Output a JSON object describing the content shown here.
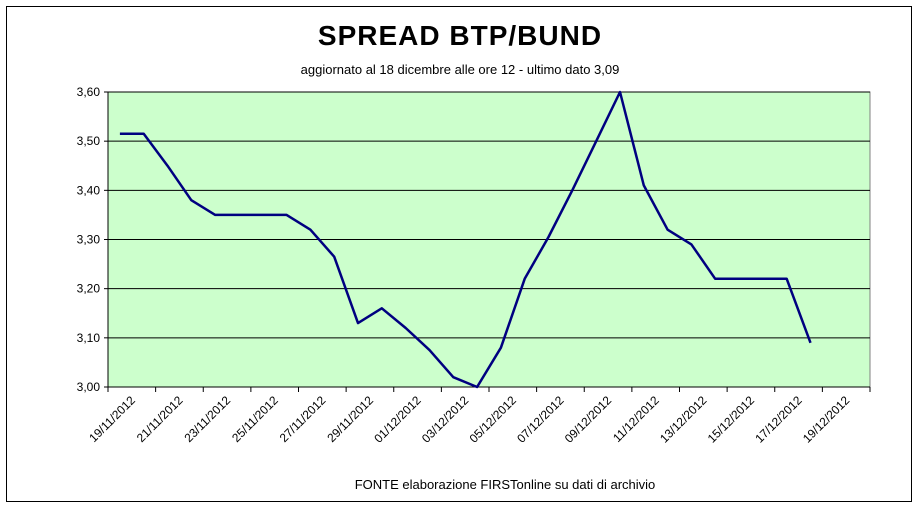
{
  "title": "SPREAD  BTP/BUND",
  "subtitle": "aggiornato al 18  dicembre alle ore 12 - ultimo dato 3,09",
  "source": "FONTE elaborazione FIRSTonline su dati di archivio",
  "colors": {
    "plot_bg": "#ccffcc",
    "line": "#000080",
    "grid": "#000000"
  },
  "chart_data": {
    "type": "line",
    "title": "SPREAD  BTP/BUND",
    "subtitle": "aggiornato al 18  dicembre alle ore 12 - ultimo dato 3,09",
    "xlabel": "",
    "ylabel": "",
    "ylim": [
      3.0,
      3.6
    ],
    "y_ticks": [
      3.0,
      3.1,
      3.2,
      3.3,
      3.4,
      3.5,
      3.6
    ],
    "y_tick_labels": [
      "3,00",
      "3,10",
      "3,20",
      "3,30",
      "3,40",
      "3,50",
      "3,60"
    ],
    "x_tick_labels": [
      "19/11/2012",
      "21/11/2012",
      "23/11/2012",
      "25/11/2012",
      "27/11/2012",
      "29/11/2012",
      "01/12/2012",
      "03/12/2012",
      "05/12/2012",
      "07/12/2012",
      "09/12/2012",
      "11/12/2012",
      "13/12/2012",
      "15/12/2012",
      "17/12/2012",
      "19/12/2012"
    ],
    "grid": true,
    "legend": "none",
    "series": [
      {
        "x": [
          "2012-11-19",
          "2012-11-20",
          "2012-11-21",
          "2012-11-22",
          "2012-11-23",
          "2012-11-24",
          "2012-11-25",
          "2012-11-26",
          "2012-11-27",
          "2012-11-28",
          "2012-11-29",
          "2012-11-30",
          "2012-12-01",
          "2012-12-02",
          "2012-12-03",
          "2012-12-04",
          "2012-12-05",
          "2012-12-06",
          "2012-12-07",
          "2012-12-08",
          "2012-12-09",
          "2012-12-10",
          "2012-12-11",
          "2012-12-12",
          "2012-12-13",
          "2012-12-14",
          "2012-12-15",
          "2012-12-16",
          "2012-12-17",
          "2012-12-18"
        ],
        "y": [
          3.515,
          3.515,
          3.45,
          3.38,
          3.35,
          3.35,
          3.35,
          3.35,
          3.32,
          3.265,
          3.13,
          3.16,
          3.12,
          3.075,
          3.02,
          3.0,
          3.08,
          3.22,
          3.305,
          3.4,
          3.5,
          3.6,
          3.41,
          3.32,
          3.29,
          3.22,
          3.22,
          3.22,
          3.22,
          3.09
        ]
      }
    ]
  }
}
